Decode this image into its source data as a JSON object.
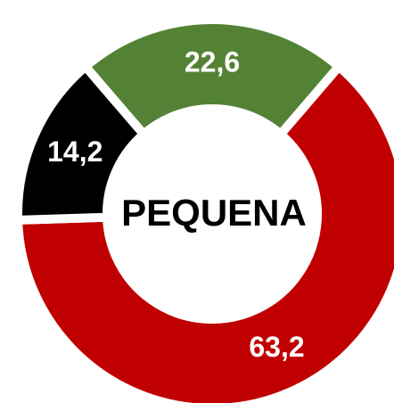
{
  "chart_data": {
    "type": "donut",
    "center_label": "PEQUENA",
    "values": [
      22.6,
      63.2,
      14.2
    ],
    "value_labels": [
      "22,6",
      "63,2",
      "14,2"
    ],
    "colors": [
      "#548235",
      "#c00000",
      "#000000"
    ]
  }
}
